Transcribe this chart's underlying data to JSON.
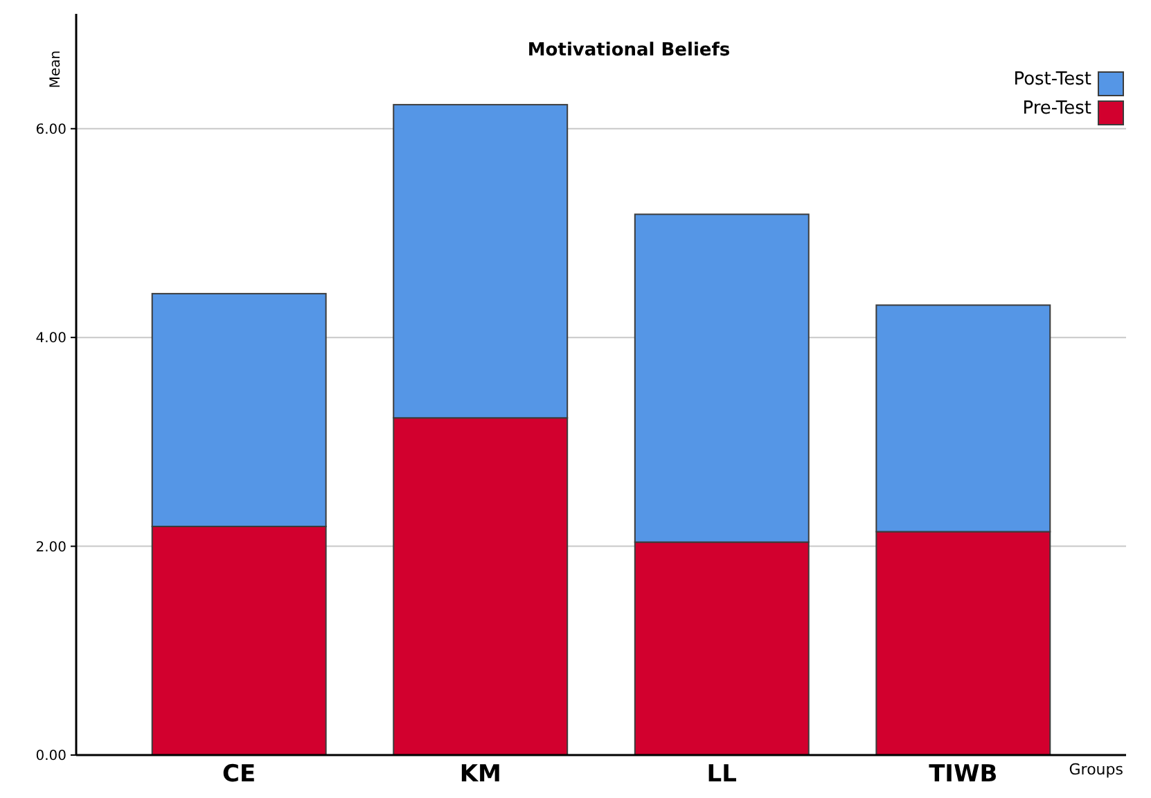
{
  "chart_data": {
    "type": "bar",
    "title": "Motivational Beliefs",
    "xlabel": "Groups",
    "ylabel": "Mean",
    "categories": [
      "CE",
      "KM",
      "LL",
      "TIWB"
    ],
    "stacked": true,
    "series": [
      {
        "name": "Pre-Test",
        "color": "#d2002e",
        "values": [
          2.19,
          3.23,
          2.04,
          2.14
        ]
      },
      {
        "name": "Post-Test",
        "color": "#5596e6",
        "values": [
          2.23,
          3.0,
          3.14,
          2.17
        ]
      }
    ],
    "ylim": [
      0,
      7.1
    ],
    "yticks": [
      {
        "value": 0,
        "label": "0.00"
      },
      {
        "value": 2,
        "label": "2.00"
      },
      {
        "value": 4,
        "label": "4.00"
      },
      {
        "value": 6,
        "label": "6.00"
      }
    ],
    "grid": "y",
    "legend": "top right"
  }
}
